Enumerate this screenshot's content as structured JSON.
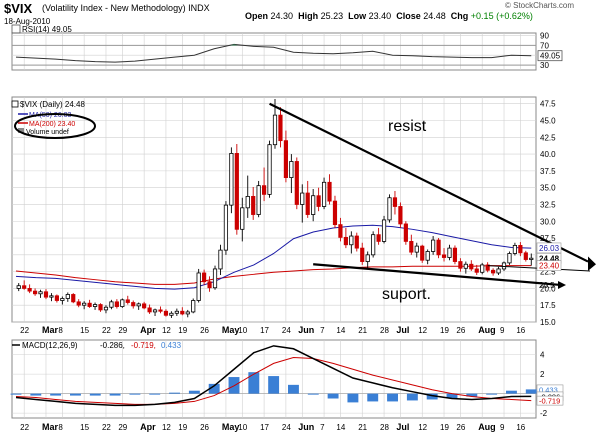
{
  "header": {
    "ticker": "$VIX",
    "name": "(Volatility Index - New Methodology)  INDX",
    "date": "18-Aug-2010",
    "open_label": "Open",
    "open": "24.30",
    "high_label": "High",
    "high": "25.23",
    "low_label": "Low",
    "low": "23.40",
    "close_label": "Close",
    "close": "24.48",
    "chg_label": "Chg",
    "chg": "+0.15 (+0.62%)",
    "brand": "© StockCharts.com"
  },
  "colors": {
    "up_candle": "#000000",
    "down_candle": "#cc0000",
    "ma50": "#1a1aa6",
    "ma200": "#cc0000",
    "macd_line": "#000000",
    "signal_line": "#cc0000",
    "histogram": "#3a7fd5",
    "rsi_line": "#333333",
    "rsi_overbought": "#2e8b57",
    "annotation": "#000000",
    "grid": "#d0d0d0"
  },
  "chart_data": [
    {
      "type": "line",
      "panel": "RSI",
      "legend": "RSI(14) 49.05",
      "y_ticks": [
        30,
        50,
        70,
        90
      ],
      "ylim": [
        20,
        95
      ],
      "last_value_label": "49.05",
      "x": [
        "Feb 22",
        "Mar 1",
        "Mar 8",
        "Mar 15",
        "Mar 22",
        "Mar 29",
        "Apr 5",
        "Apr 12",
        "Apr 19",
        "Apr 26",
        "May 3",
        "May 10",
        "May 17",
        "May 24",
        "Jun 1",
        "Jun 7",
        "Jun 14",
        "Jun 21",
        "Jun 28",
        "Jul 6",
        "Jul 12",
        "Jul 19",
        "Jul 26",
        "Aug 2",
        "Aug 9",
        "Aug 16",
        "Aug 18"
      ],
      "values": [
        46,
        44,
        42,
        39,
        37,
        36,
        38,
        42,
        46,
        50,
        63,
        72,
        68,
        66,
        56,
        54,
        53,
        55,
        58,
        50,
        49,
        47,
        46,
        45,
        45,
        50,
        49
      ]
    },
    {
      "type": "candlestick",
      "panel": "price",
      "legend": [
        "$VIX (Daily) 24.48",
        "MA(50) 26.03",
        "MA(200) 23.40",
        "Volume undef"
      ],
      "y_ticks": [
        15.0,
        17.5,
        20.0,
        22.5,
        25.0,
        27.5,
        30.0,
        32.5,
        35.0,
        37.5,
        40.0,
        42.5,
        45.0,
        47.5
      ],
      "ylim": [
        15.0,
        48.5
      ],
      "x_ticks": [
        "22",
        "Mar",
        "8",
        "15",
        "22",
        "29",
        "Apr",
        "12",
        "19",
        "26",
        "May",
        "10",
        "17",
        "24",
        "Jun",
        "7",
        "14",
        "21",
        "28",
        "Jul",
        "12",
        "19",
        "26",
        "Aug",
        "9",
        "16"
      ],
      "price_labels": [
        "26.03",
        "24.48",
        "23.40",
        "20.5"
      ],
      "candles": [
        {
          "o": 20.0,
          "h": 20.8,
          "l": 19.6,
          "c": 20.4
        },
        {
          "o": 20.4,
          "h": 21.2,
          "l": 19.8,
          "c": 20.0
        },
        {
          "o": 20.0,
          "h": 20.6,
          "l": 19.3,
          "c": 19.6
        },
        {
          "o": 19.6,
          "h": 20.0,
          "l": 18.9,
          "c": 19.2
        },
        {
          "o": 19.2,
          "h": 19.8,
          "l": 18.6,
          "c": 19.5
        },
        {
          "o": 19.5,
          "h": 19.9,
          "l": 18.4,
          "c": 18.7
        },
        {
          "o": 18.7,
          "h": 19.3,
          "l": 18.1,
          "c": 18.9
        },
        {
          "o": 18.9,
          "h": 19.1,
          "l": 17.9,
          "c": 18.2
        },
        {
          "o": 18.2,
          "h": 18.8,
          "l": 17.6,
          "c": 18.5
        },
        {
          "o": 18.5,
          "h": 19.4,
          "l": 18.0,
          "c": 19.1
        },
        {
          "o": 19.1,
          "h": 19.3,
          "l": 17.8,
          "c": 18.0
        },
        {
          "o": 18.0,
          "h": 18.4,
          "l": 17.2,
          "c": 17.5
        },
        {
          "o": 17.5,
          "h": 18.1,
          "l": 16.9,
          "c": 17.8
        },
        {
          "o": 17.8,
          "h": 18.3,
          "l": 17.1,
          "c": 17.3
        },
        {
          "o": 17.3,
          "h": 17.9,
          "l": 16.8,
          "c": 17.6
        },
        {
          "o": 17.6,
          "h": 17.8,
          "l": 16.5,
          "c": 16.8
        },
        {
          "o": 16.8,
          "h": 17.5,
          "l": 16.3,
          "c": 17.2
        },
        {
          "o": 17.2,
          "h": 18.3,
          "l": 16.9,
          "c": 18.0
        },
        {
          "o": 18.0,
          "h": 18.4,
          "l": 17.0,
          "c": 17.3
        },
        {
          "o": 17.3,
          "h": 18.5,
          "l": 17.1,
          "c": 18.3
        },
        {
          "o": 18.3,
          "h": 18.9,
          "l": 17.6,
          "c": 17.9
        },
        {
          "o": 17.9,
          "h": 18.2,
          "l": 17.0,
          "c": 17.4
        },
        {
          "o": 17.4,
          "h": 17.9,
          "l": 16.8,
          "c": 17.7
        },
        {
          "o": 17.7,
          "h": 18.0,
          "l": 16.9,
          "c": 17.1
        },
        {
          "o": 17.1,
          "h": 17.6,
          "l": 16.2,
          "c": 16.5
        },
        {
          "o": 16.5,
          "h": 17.0,
          "l": 15.9,
          "c": 16.8
        },
        {
          "o": 16.8,
          "h": 17.3,
          "l": 16.3,
          "c": 16.6
        },
        {
          "o": 16.6,
          "h": 16.9,
          "l": 15.8,
          "c": 16.0
        },
        {
          "o": 16.0,
          "h": 16.6,
          "l": 15.6,
          "c": 16.3
        },
        {
          "o": 16.3,
          "h": 17.0,
          "l": 15.9,
          "c": 16.6
        },
        {
          "o": 16.6,
          "h": 17.2,
          "l": 16.0,
          "c": 16.2
        },
        {
          "o": 16.2,
          "h": 16.8,
          "l": 15.7,
          "c": 16.5
        },
        {
          "o": 16.5,
          "h": 18.5,
          "l": 16.3,
          "c": 18.2
        },
        {
          "o": 18.2,
          "h": 22.9,
          "l": 17.9,
          "c": 22.3
        },
        {
          "o": 22.3,
          "h": 22.8,
          "l": 20.5,
          "c": 21.0
        },
        {
          "o": 21.0,
          "h": 21.8,
          "l": 19.5,
          "c": 20.1
        },
        {
          "o": 20.1,
          "h": 23.4,
          "l": 19.8,
          "c": 22.9
        },
        {
          "o": 22.9,
          "h": 26.5,
          "l": 22.0,
          "c": 25.7
        },
        {
          "o": 25.7,
          "h": 33.0,
          "l": 25.0,
          "c": 32.4
        },
        {
          "o": 32.4,
          "h": 41.0,
          "l": 31.2,
          "c": 40.1
        },
        {
          "o": 40.1,
          "h": 41.5,
          "l": 28.0,
          "c": 28.8
        },
        {
          "o": 28.8,
          "h": 33.5,
          "l": 27.0,
          "c": 32.0
        },
        {
          "o": 32.0,
          "h": 36.8,
          "l": 30.5,
          "c": 33.7
        },
        {
          "o": 33.7,
          "h": 35.1,
          "l": 30.2,
          "c": 31.0
        },
        {
          "o": 31.0,
          "h": 36.0,
          "l": 30.6,
          "c": 35.3
        },
        {
          "o": 35.3,
          "h": 38.0,
          "l": 33.0,
          "c": 34.0
        },
        {
          "o": 34.0,
          "h": 42.0,
          "l": 33.5,
          "c": 41.4
        },
        {
          "o": 41.4,
          "h": 48.2,
          "l": 40.8,
          "c": 45.8
        },
        {
          "o": 45.8,
          "h": 47.0,
          "l": 41.0,
          "c": 42.0
        },
        {
          "o": 42.0,
          "h": 43.5,
          "l": 35.8,
          "c": 36.5
        },
        {
          "o": 36.5,
          "h": 40.0,
          "l": 34.2,
          "c": 38.9
        },
        {
          "o": 38.9,
          "h": 39.5,
          "l": 31.8,
          "c": 32.5
        },
        {
          "o": 32.5,
          "h": 35.5,
          "l": 29.8,
          "c": 34.2
        },
        {
          "o": 34.2,
          "h": 36.0,
          "l": 30.5,
          "c": 31.0
        },
        {
          "o": 31.0,
          "h": 34.8,
          "l": 30.0,
          "c": 33.8
        },
        {
          "o": 33.8,
          "h": 35.0,
          "l": 31.5,
          "c": 32.2
        },
        {
          "o": 32.2,
          "h": 36.5,
          "l": 31.8,
          "c": 35.8
        },
        {
          "o": 35.8,
          "h": 37.0,
          "l": 32.5,
          "c": 33.0
        },
        {
          "o": 33.0,
          "h": 33.8,
          "l": 29.0,
          "c": 29.5
        },
        {
          "o": 29.5,
          "h": 30.5,
          "l": 27.0,
          "c": 27.6
        },
        {
          "o": 27.6,
          "h": 29.0,
          "l": 26.0,
          "c": 26.5
        },
        {
          "o": 26.5,
          "h": 28.5,
          "l": 25.2,
          "c": 27.8
        },
        {
          "o": 27.8,
          "h": 28.3,
          "l": 25.5,
          "c": 26.0
        },
        {
          "o": 26.0,
          "h": 26.8,
          "l": 23.5,
          "c": 24.0
        },
        {
          "o": 24.0,
          "h": 25.5,
          "l": 23.0,
          "c": 25.0
        },
        {
          "o": 25.0,
          "h": 28.5,
          "l": 24.6,
          "c": 28.0
        },
        {
          "o": 28.0,
          "h": 29.0,
          "l": 26.5,
          "c": 27.0
        },
        {
          "o": 27.0,
          "h": 30.8,
          "l": 26.7,
          "c": 30.2
        },
        {
          "o": 30.2,
          "h": 34.0,
          "l": 29.8,
          "c": 33.5
        },
        {
          "o": 33.5,
          "h": 34.5,
          "l": 31.0,
          "c": 32.2
        },
        {
          "o": 32.2,
          "h": 32.8,
          "l": 29.0,
          "c": 29.6
        },
        {
          "o": 29.6,
          "h": 30.0,
          "l": 26.5,
          "c": 27.0
        },
        {
          "o": 27.0,
          "h": 28.0,
          "l": 25.0,
          "c": 25.4
        },
        {
          "o": 25.4,
          "h": 26.8,
          "l": 24.6,
          "c": 26.3
        },
        {
          "o": 26.3,
          "h": 26.5,
          "l": 23.8,
          "c": 24.2
        },
        {
          "o": 24.2,
          "h": 25.8,
          "l": 23.6,
          "c": 25.5
        },
        {
          "o": 25.5,
          "h": 27.8,
          "l": 25.0,
          "c": 27.2
        },
        {
          "o": 27.2,
          "h": 27.5,
          "l": 24.5,
          "c": 25.0
        },
        {
          "o": 25.0,
          "h": 26.0,
          "l": 24.0,
          "c": 24.6
        },
        {
          "o": 24.6,
          "h": 26.5,
          "l": 24.2,
          "c": 26.0
        },
        {
          "o": 26.0,
          "h": 26.4,
          "l": 23.6,
          "c": 24.0
        },
        {
          "o": 24.0,
          "h": 24.5,
          "l": 22.5,
          "c": 23.0
        },
        {
          "o": 23.0,
          "h": 24.0,
          "l": 22.2,
          "c": 23.6
        },
        {
          "o": 23.6,
          "h": 24.2,
          "l": 22.6,
          "c": 22.9
        },
        {
          "o": 22.9,
          "h": 23.5,
          "l": 22.0,
          "c": 22.4
        },
        {
          "o": 22.4,
          "h": 23.8,
          "l": 22.1,
          "c": 23.5
        },
        {
          "o": 23.5,
          "h": 23.9,
          "l": 22.4,
          "c": 22.7
        },
        {
          "o": 22.7,
          "h": 23.0,
          "l": 21.9,
          "c": 22.3
        },
        {
          "o": 22.3,
          "h": 23.2,
          "l": 22.0,
          "c": 22.9
        },
        {
          "o": 22.9,
          "h": 24.0,
          "l": 22.6,
          "c": 23.8
        },
        {
          "o": 23.8,
          "h": 25.5,
          "l": 23.5,
          "c": 25.2
        },
        {
          "o": 25.2,
          "h": 26.8,
          "l": 24.9,
          "c": 26.4
        },
        {
          "o": 26.4,
          "h": 26.9,
          "l": 24.8,
          "c": 25.3
        },
        {
          "o": 25.3,
          "h": 25.6,
          "l": 24.0,
          "c": 24.3
        },
        {
          "o": 24.3,
          "h": 25.2,
          "l": 23.4,
          "c": 24.5
        }
      ],
      "ma50": [
        21.8,
        21.6,
        21.5,
        21.2,
        20.9,
        20.6,
        20.3,
        20.0,
        19.9,
        20.1,
        21.0,
        22.4,
        23.5,
        25.2,
        27.4,
        28.4,
        29.0,
        29.3,
        29.4,
        29.2,
        28.8,
        28.3,
        27.7,
        27.1,
        26.5,
        26.1,
        26.0
      ],
      "ma200": [
        22.6,
        22.3,
        22.0,
        21.6,
        21.3,
        21.0,
        20.8,
        20.6,
        20.6,
        20.8,
        21.4,
        21.8,
        22.1,
        22.4,
        22.6,
        22.8,
        22.9,
        23.1,
        23.2,
        23.2,
        23.3,
        23.3,
        23.3,
        23.3,
        23.4,
        23.4,
        23.4
      ],
      "annotations": [
        "resist",
        "suport."
      ],
      "trendlines": [
        {
          "name": "resistance",
          "from": [
            "May 22",
            47.5
          ],
          "to": [
            "Aug 18+",
            24.0
          ]
        },
        {
          "name": "support",
          "from": [
            "Jun 4",
            23.6
          ],
          "to": [
            "Aug 18+",
            20.5
          ]
        },
        {
          "name": "ma200-projection",
          "from": [
            "Jul 26",
            23.4
          ],
          "to": [
            "Aug 18+",
            22.8
          ]
        }
      ]
    },
    {
      "type": "line",
      "panel": "MACD",
      "legend_label": "MACD(12,26,9)",
      "legend_values": [
        "-0.286,",
        "-0.719,",
        "0.433"
      ],
      "y_ticks": [
        4,
        2,
        0,
        -2
      ],
      "ylim": [
        -2.5,
        5.5
      ],
      "price_labels": [
        "0.433",
        "-0.286",
        "-0.719"
      ],
      "series": [
        {
          "name": "MACD",
          "values": [
            -0.4,
            -0.6,
            -0.8,
            -1.0,
            -1.1,
            -1.2,
            -1.2,
            -1.1,
            -0.9,
            -0.5,
            0.8,
            2.5,
            4.2,
            4.9,
            4.6,
            3.6,
            2.6,
            1.6,
            1.1,
            0.6,
            0.2,
            -0.2,
            -0.5,
            -0.6,
            -0.5,
            -0.3,
            -0.286
          ]
        },
        {
          "name": "Signal",
          "values": [
            -0.3,
            -0.4,
            -0.6,
            -0.8,
            -0.9,
            -1.0,
            -1.1,
            -1.1,
            -1.0,
            -0.8,
            -0.2,
            0.8,
            2.0,
            3.1,
            3.7,
            3.6,
            3.1,
            2.5,
            1.9,
            1.4,
            0.9,
            0.4,
            0.0,
            -0.3,
            -0.5,
            -0.6,
            -0.719
          ]
        },
        {
          "name": "Histogram",
          "values": [
            -0.1,
            -0.2,
            -0.2,
            -0.2,
            -0.2,
            -0.2,
            -0.1,
            0.0,
            0.1,
            0.3,
            1.0,
            1.7,
            2.2,
            1.8,
            0.9,
            0.0,
            -0.5,
            -0.9,
            -0.8,
            -0.8,
            -0.7,
            -0.6,
            -0.5,
            -0.3,
            0.0,
            0.3,
            0.433
          ]
        }
      ]
    }
  ]
}
